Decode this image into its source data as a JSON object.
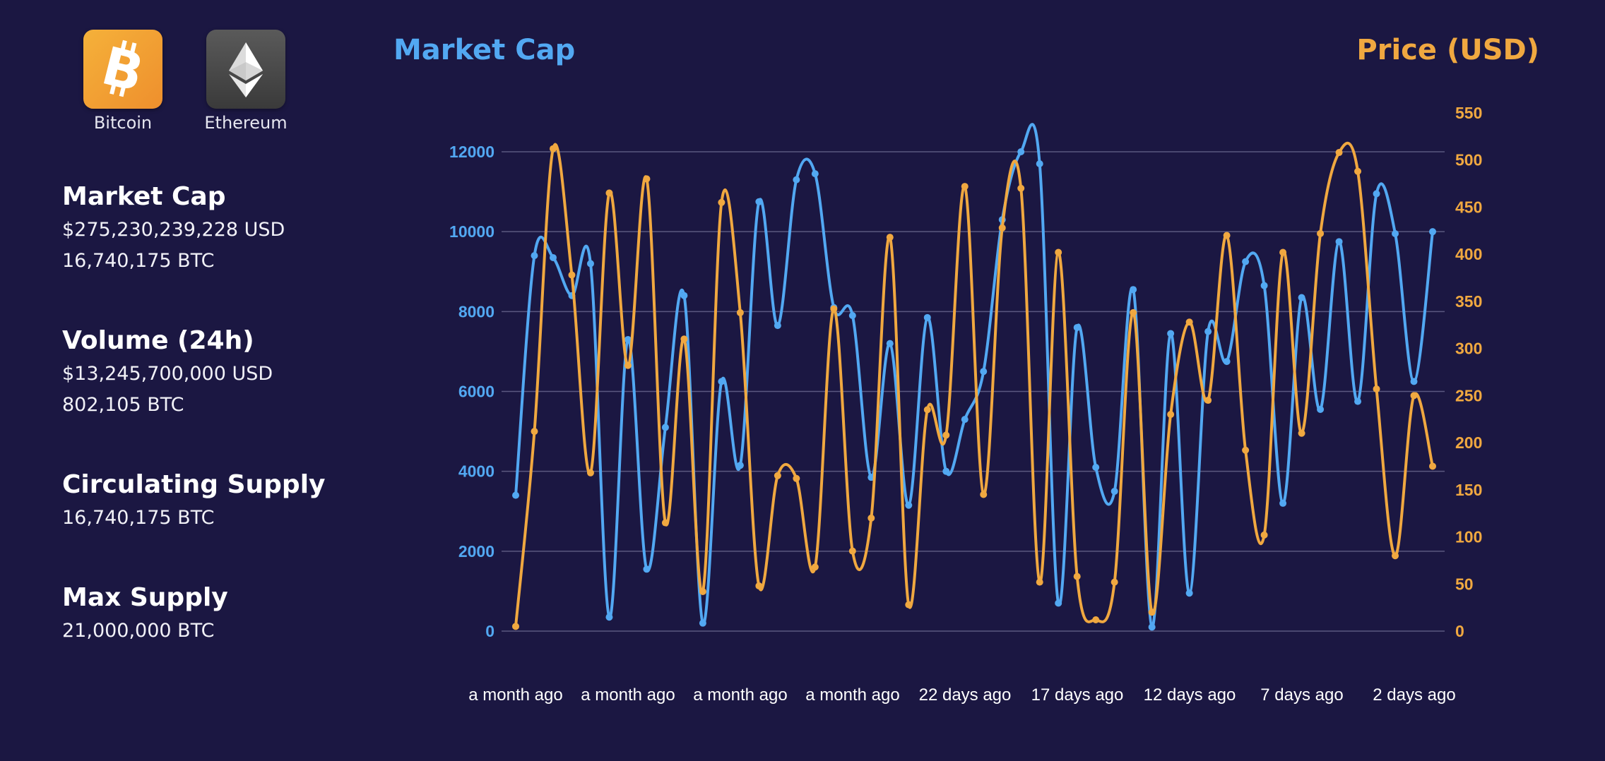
{
  "coins": [
    {
      "label": "Bitcoin",
      "icon": "bitcoin-icon",
      "color": "#f0a030"
    },
    {
      "label": "Ethereum",
      "icon": "ethereum-icon",
      "color": "#4a4a4a"
    }
  ],
  "stats": {
    "market_cap": {
      "title": "Market Cap",
      "usd": "$275,230,239,228 USD",
      "btc": "16,740,175 BTC"
    },
    "volume": {
      "title": "Volume (24h)",
      "usd": "$13,245,700,000 USD",
      "btc": "802,105 BTC"
    },
    "circulating_supply": {
      "title": "Circulating Supply",
      "btc": "16,740,175 BTC"
    },
    "max_supply": {
      "title": "Max Supply",
      "btc": "21,000,000 BTC"
    }
  },
  "chart_data": {
    "type": "line",
    "left_axis_title": "Market Cap",
    "right_axis_title": "Price (USD)",
    "left_color": "#52a8f2",
    "right_color": "#f0a840",
    "ylim_left": [
      0,
      12000
    ],
    "yticks_left": [
      "0",
      "2000",
      "4000",
      "6000",
      "8000",
      "10000",
      "12000"
    ],
    "ylim_right": [
      0,
      550
    ],
    "yticks_right": [
      "0",
      "50",
      "100",
      "150",
      "200",
      "250",
      "300",
      "350",
      "400",
      "450",
      "500",
      "550"
    ],
    "x_tick_labels": [
      "a month ago",
      "a month ago",
      "a month ago",
      "a month ago",
      "22 days ago",
      "17 days ago",
      "12 days ago",
      "7 days ago",
      "2 days ago"
    ],
    "series": [
      {
        "axis": "left",
        "values": [
          3400,
          9400,
          9350,
          8400,
          9200,
          350,
          7300,
          1550,
          5100,
          8400,
          200,
          6250,
          4150,
          10750,
          7650,
          11300,
          11450,
          8100,
          7900,
          3850,
          7200,
          3150,
          7850,
          4000,
          5300,
          6500,
          10300,
          12000,
          11700,
          700,
          7600,
          4100,
          3500,
          8550,
          100,
          7450,
          950,
          7500,
          6750,
          9250,
          8650,
          3200,
          8350,
          5550,
          9750,
          5750,
          10950,
          9950,
          6250,
          10000
        ]
      },
      {
        "axis": "right",
        "values": [
          5,
          212,
          512,
          378,
          168,
          465,
          282,
          480,
          115,
          310,
          42,
          455,
          338,
          48,
          165,
          162,
          68,
          342,
          85,
          120,
          418,
          28,
          235,
          208,
          472,
          145,
          428,
          470,
          52,
          402,
          58,
          12,
          52,
          338,
          20,
          230,
          328,
          245,
          420,
          192,
          102,
          402,
          210,
          422,
          508,
          488,
          257,
          80,
          250,
          175
        ]
      }
    ]
  }
}
